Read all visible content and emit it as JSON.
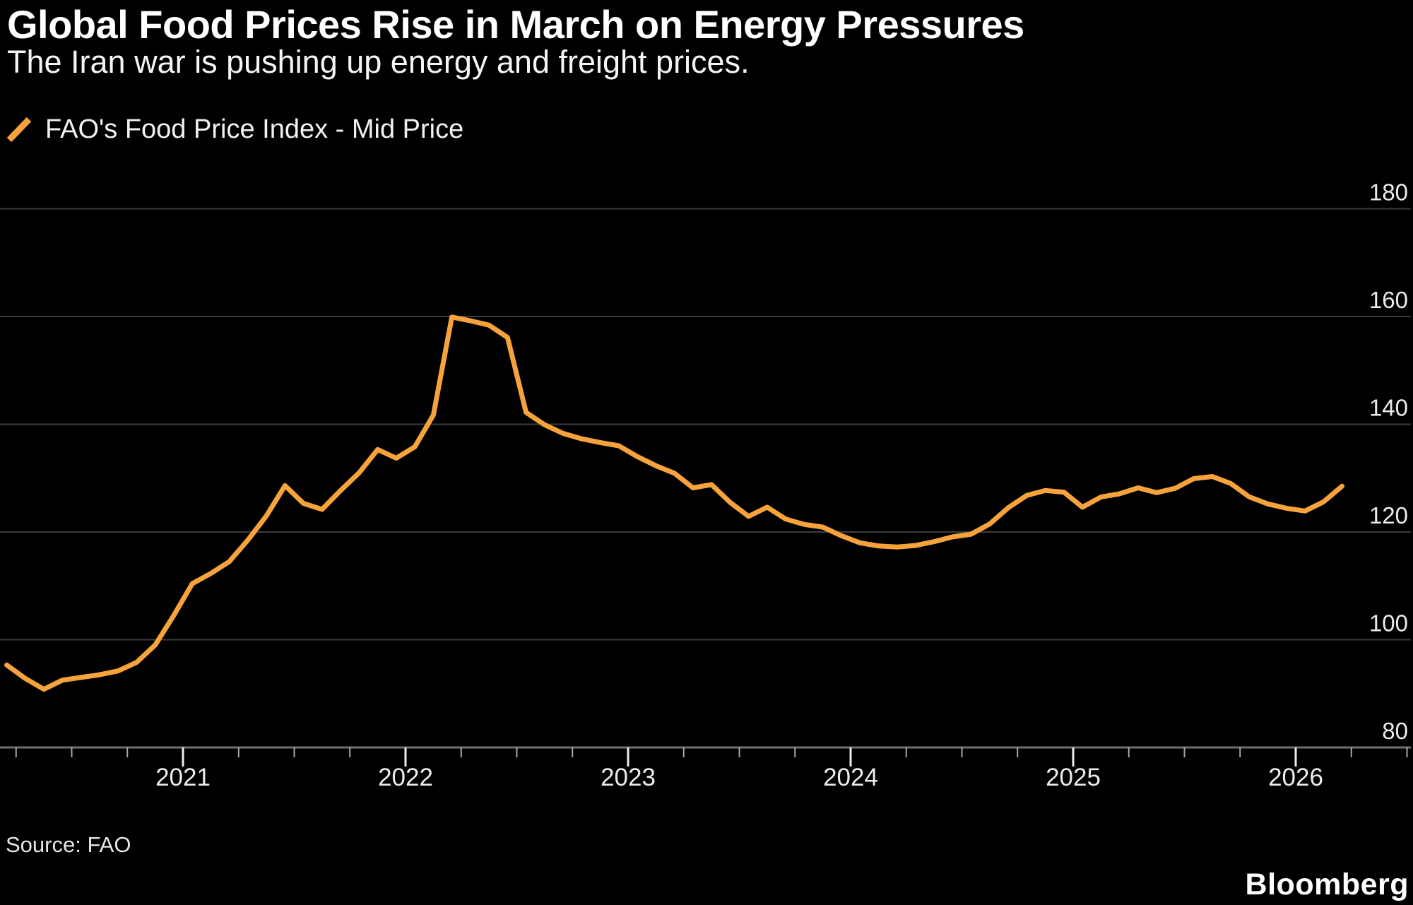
{
  "header": {
    "title": "Global Food Prices Rise in March on Energy Pressures",
    "subtitle": "The Iran war is pushing up energy and freight prices."
  },
  "legend": {
    "label": "FAO's Food Price Index - Mid Price",
    "marker_color": "#F7A33C"
  },
  "source": {
    "label": "Source: FAO"
  },
  "brand": {
    "label": "Bloomberg"
  },
  "chart_data": {
    "type": "line",
    "title": "Global Food Prices Rise in March on Energy Pressures",
    "subtitle": "The Iran war is pushing up energy and freight prices.",
    "xlabel": "",
    "ylabel": "",
    "ylim": [
      80,
      186
    ],
    "y_ticks": [
      80,
      100,
      120,
      140,
      160,
      180
    ],
    "x_ticks": [
      "2021",
      "2022",
      "2023",
      "2024",
      "2025",
      "2026"
    ],
    "x_minor_tick_frequency": "quarterly",
    "grid": "horizontal",
    "legend_position": "top-left",
    "background_color": "#000000",
    "gridline_color": "#3D3D3D",
    "axis_line_color": "#717171",
    "tick_label_color": "#ECECEC",
    "series": [
      {
        "name": "FAO's Food Price Index - Mid Price",
        "color": "#F7A33C",
        "frequency": "monthly",
        "x": [
          "2020-03",
          "2020-04",
          "2020-05",
          "2020-06",
          "2020-07",
          "2020-08",
          "2020-09",
          "2020-10",
          "2020-11",
          "2020-12",
          "2021-01",
          "2021-02",
          "2021-03",
          "2021-04",
          "2021-05",
          "2021-06",
          "2021-07",
          "2021-08",
          "2021-09",
          "2021-10",
          "2021-11",
          "2021-12",
          "2022-01",
          "2022-02",
          "2022-03",
          "2022-04",
          "2022-05",
          "2022-06",
          "2022-07",
          "2022-08",
          "2022-09",
          "2022-10",
          "2022-11",
          "2022-12",
          "2023-01",
          "2023-02",
          "2023-03",
          "2023-04",
          "2023-05",
          "2023-06",
          "2023-07",
          "2023-08",
          "2023-09",
          "2023-10",
          "2023-11",
          "2023-12",
          "2024-01",
          "2024-02",
          "2024-03",
          "2024-04",
          "2024-05",
          "2024-06",
          "2024-07",
          "2024-08",
          "2024-09",
          "2024-10",
          "2024-11",
          "2024-12",
          "2025-01",
          "2025-02",
          "2025-03",
          "2025-04",
          "2025-05",
          "2025-06",
          "2025-07",
          "2025-08",
          "2025-09",
          "2025-10",
          "2025-11",
          "2025-12",
          "2026-01",
          "2026-02",
          "2026-03"
        ],
        "values": [
          95.3,
          92.8,
          90.8,
          92.5,
          93.0,
          93.5,
          94.2,
          95.8,
          99.0,
          104.5,
          110.4,
          112.3,
          114.5,
          118.5,
          123.0,
          128.6,
          125.3,
          124.2,
          127.7,
          131.0,
          135.3,
          133.7,
          135.8,
          141.7,
          159.9,
          159.2,
          158.4,
          156.1,
          142.2,
          139.9,
          138.3,
          137.3,
          136.6,
          136.0,
          134.0,
          132.3,
          130.9,
          128.2,
          128.8,
          125.5,
          122.9,
          124.6,
          122.4,
          121.4,
          120.9,
          119.3,
          118.0,
          117.4,
          117.2,
          117.5,
          118.2,
          119.1,
          119.6,
          121.5,
          124.5,
          126.8,
          127.7,
          127.4,
          124.6,
          126.5,
          127.1,
          128.2,
          127.3,
          128.1,
          129.9,
          130.3,
          129.0,
          126.5,
          125.2,
          124.4,
          123.9,
          125.6,
          128.5
        ]
      }
    ]
  }
}
